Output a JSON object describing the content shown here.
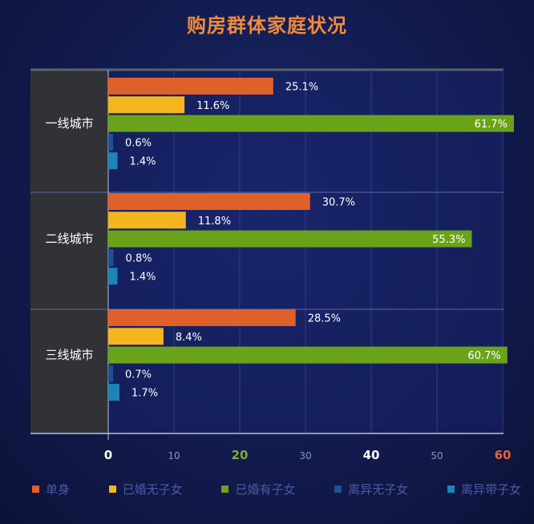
{
  "chart_data": {
    "type": "bar",
    "orientation": "horizontal",
    "title": "购房群体家庭状况",
    "categories": [
      "一线城市",
      "二线城市",
      "三线城市"
    ],
    "series": [
      {
        "name": "单身",
        "color": "#e0602a",
        "values": [
          25.1,
          30.7,
          28.5
        ],
        "labels": [
          "25.1%",
          "30.7%",
          "28.5%"
        ]
      },
      {
        "name": "已婚无子女",
        "color": "#f5b51f",
        "values": [
          11.6,
          11.8,
          8.4
        ],
        "labels": [
          "11.6%",
          "11.8%",
          "8.4%"
        ]
      },
      {
        "name": "已婚有子女",
        "color": "#6aa31a",
        "values": [
          61.7,
          55.3,
          60.7
        ],
        "labels": [
          "61.7%",
          "55.3%",
          "60.7%"
        ]
      },
      {
        "name": "离异无子女",
        "color": "#1f4f9a",
        "values": [
          0.6,
          0.8,
          0.7
        ],
        "labels": [
          "0.6%",
          "0.8%",
          "0.7%"
        ]
      },
      {
        "name": "离异带子女",
        "color": "#1e84b8",
        "values": [
          1.4,
          1.4,
          1.7
        ],
        "labels": [
          "1.4%",
          "1.4%",
          "1.7%"
        ]
      }
    ],
    "xlim": [
      0,
      60
    ],
    "x_ticks": [
      {
        "value": 0,
        "label": "0",
        "color": "#ffffff"
      },
      {
        "value": 10,
        "label": "10",
        "color": "#8a94c4"
      },
      {
        "value": 20,
        "label": "20",
        "color": "#7aae2a"
      },
      {
        "value": 30,
        "label": "30",
        "color": "#8a94c4"
      },
      {
        "value": 40,
        "label": "40",
        "color": "#ffffff"
      },
      {
        "value": 50,
        "label": "50",
        "color": "#8a94c4"
      },
      {
        "value": 60,
        "label": "60",
        "color": "#e8603a"
      }
    ],
    "grid": true,
    "legend_position": "bottom"
  }
}
